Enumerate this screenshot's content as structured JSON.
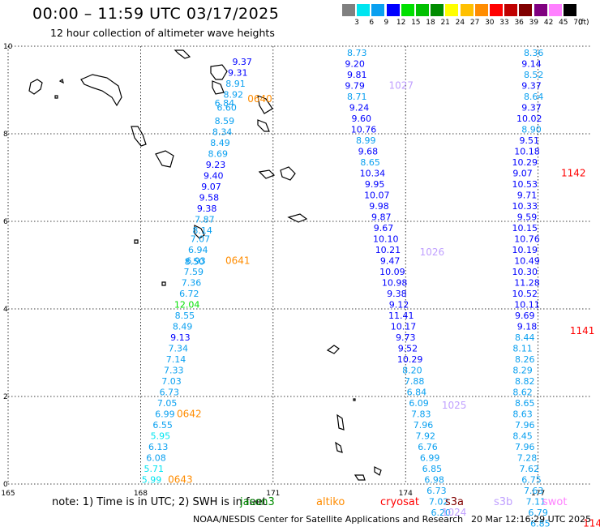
{
  "header": {
    "title": "00:00 – 11:59 UTC 03/17/2025",
    "subtitle": "12 hour collection of altimeter wave heights"
  },
  "legend": {
    "unit": "(ft)",
    "bins": [
      {
        "label": "3",
        "color": "#808080"
      },
      {
        "label": "6",
        "color": "#00e5f0"
      },
      {
        "label": "9",
        "color": "#0aa0f0"
      },
      {
        "label": "12",
        "color": "#0000ff"
      },
      {
        "label": "15",
        "color": "#00e000"
      },
      {
        "label": "18",
        "color": "#00c000"
      },
      {
        "label": "21",
        "color": "#008c00"
      },
      {
        "label": "24",
        "color": "#ffff00"
      },
      {
        "label": "27",
        "color": "#ffc000"
      },
      {
        "label": "30",
        "color": "#ff8c00"
      },
      {
        "label": "33",
        "color": "#ff0000"
      },
      {
        "label": "36",
        "color": "#c00000"
      },
      {
        "label": "39",
        "color": "#800000"
      },
      {
        "label": "42",
        "color": "#800080"
      },
      {
        "label": "45",
        "color": "#ff80ff"
      },
      {
        "label": "70",
        "color": "#000000"
      }
    ]
  },
  "axes": {
    "x_ticks": [
      "165",
      "168",
      "171",
      "174",
      "177"
    ],
    "y_ticks": [
      "0",
      "2",
      "4",
      "6",
      "8",
      "10"
    ]
  },
  "tracks": [
    {
      "pass_label": "0642",
      "pass_color": "#ff8c00",
      "points": [
        {
          "v": "9.37",
          "lon": 170.3,
          "lat": 9.65
        },
        {
          "v": "9.31",
          "lon": 170.2,
          "lat": 9.4
        },
        {
          "v": "8.91",
          "lon": 170.15,
          "lat": 9.15
        },
        {
          "v": "8.92",
          "lon": 170.1,
          "lat": 8.9
        },
        {
          "v": "6.84",
          "lon": 169.9,
          "lat": 8.7
        },
        {
          "v": "6.60",
          "lon": 169.95,
          "lat": 8.6
        },
        {
          "v": "8.59",
          "lon": 169.9,
          "lat": 8.3
        },
        {
          "v": "8.34",
          "lon": 169.85,
          "lat": 8.05
        },
        {
          "v": "8.49",
          "lon": 169.8,
          "lat": 7.8
        },
        {
          "v": "8.69",
          "lon": 169.75,
          "lat": 7.55
        },
        {
          "v": "9.23",
          "lon": 169.7,
          "lat": 7.3
        },
        {
          "v": "9.40",
          "lon": 169.65,
          "lat": 7.05
        },
        {
          "v": "9.07",
          "lon": 169.6,
          "lat": 6.8
        },
        {
          "v": "9.58",
          "lon": 169.55,
          "lat": 6.55
        },
        {
          "v": "9.38",
          "lon": 169.5,
          "lat": 6.3
        },
        {
          "v": "7.87",
          "lon": 169.45,
          "lat": 6.05
        },
        {
          "v": "8.14",
          "lon": 169.4,
          "lat": 5.8
        },
        {
          "v": "7.07",
          "lon": 169.35,
          "lat": 5.6
        },
        {
          "v": "6.94",
          "lon": 169.3,
          "lat": 5.35
        },
        {
          "v": "6.93",
          "lon": 169.25,
          "lat": 5.1
        },
        {
          "v": "8.50",
          "lon": 169.22,
          "lat": 5.08
        },
        {
          "v": "7.59",
          "lon": 169.2,
          "lat": 4.85
        },
        {
          "v": "7.36",
          "lon": 169.15,
          "lat": 4.6
        },
        {
          "v": "6.72",
          "lon": 169.1,
          "lat": 4.35
        },
        {
          "v": "12.04",
          "lon": 169.05,
          "lat": 4.1
        },
        {
          "v": "8.55",
          "lon": 169.0,
          "lat": 3.85
        },
        {
          "v": "8.49",
          "lon": 168.95,
          "lat": 3.6
        },
        {
          "v": "9.13",
          "lon": 168.9,
          "lat": 3.35
        },
        {
          "v": "7.34",
          "lon": 168.85,
          "lat": 3.1
        },
        {
          "v": "7.14",
          "lon": 168.8,
          "lat": 2.85
        },
        {
          "v": "7.33",
          "lon": 168.75,
          "lat": 2.6
        },
        {
          "v": "7.03",
          "lon": 168.7,
          "lat": 2.35
        },
        {
          "v": "6.73",
          "lon": 168.65,
          "lat": 2.1
        },
        {
          "v": "7.05",
          "lon": 168.6,
          "lat": 1.85
        },
        {
          "v": "6.99",
          "lon": 168.55,
          "lat": 1.6
        },
        {
          "v": "6.55",
          "lon": 168.5,
          "lat": 1.35
        },
        {
          "v": "5.95",
          "lon": 168.45,
          "lat": 1.1
        },
        {
          "v": "6.13",
          "lon": 168.4,
          "lat": 0.85
        },
        {
          "v": "6.08",
          "lon": 168.35,
          "lat": 0.6
        },
        {
          "v": "5.71",
          "lon": 168.3,
          "lat": 0.35
        },
        {
          "v": "5.99",
          "lon": 168.25,
          "lat": 0.1
        }
      ]
    },
    {
      "pass_label": "1026",
      "pass_color": "#c0a0ff",
      "points": [
        {
          "v": "8.73",
          "lon": 172.9,
          "lat": 9.85
        },
        {
          "v": "9.20",
          "lon": 172.85,
          "lat": 9.6
        },
        {
          "v": "9.81",
          "lon": 172.9,
          "lat": 9.35
        },
        {
          "v": "9.79",
          "lon": 172.85,
          "lat": 9.1
        },
        {
          "v": "8.71",
          "lon": 172.9,
          "lat": 8.85
        },
        {
          "v": "9.24",
          "lon": 172.95,
          "lat": 8.6
        },
        {
          "v": "9.60",
          "lon": 173.0,
          "lat": 8.35
        },
        {
          "v": "10.76",
          "lon": 173.05,
          "lat": 8.1
        },
        {
          "v": "8.99",
          "lon": 173.1,
          "lat": 7.85
        },
        {
          "v": "9.68",
          "lon": 173.15,
          "lat": 7.6
        },
        {
          "v": "8.65",
          "lon": 173.2,
          "lat": 7.35
        },
        {
          "v": "10.34",
          "lon": 173.25,
          "lat": 7.1
        },
        {
          "v": "9.95",
          "lon": 173.3,
          "lat": 6.85
        },
        {
          "v": "10.07",
          "lon": 173.35,
          "lat": 6.6
        },
        {
          "v": "9.98",
          "lon": 173.4,
          "lat": 6.35
        },
        {
          "v": "9.87",
          "lon": 173.45,
          "lat": 6.1
        },
        {
          "v": "9.67",
          "lon": 173.5,
          "lat": 5.85
        },
        {
          "v": "10.10",
          "lon": 173.55,
          "lat": 5.6
        },
        {
          "v": "10.21",
          "lon": 173.6,
          "lat": 5.35
        },
        {
          "v": "9.47",
          "lon": 173.65,
          "lat": 5.1
        },
        {
          "v": "10.09",
          "lon": 173.7,
          "lat": 4.85
        },
        {
          "v": "10.98",
          "lon": 173.75,
          "lat": 4.6
        },
        {
          "v": "9.38",
          "lon": 173.8,
          "lat": 4.35
        },
        {
          "v": "9.12",
          "lon": 173.85,
          "lat": 4.1
        },
        {
          "v": "11.41",
          "lon": 173.9,
          "lat": 3.85
        },
        {
          "v": "10.17",
          "lon": 173.95,
          "lat": 3.6
        },
        {
          "v": "9.73",
          "lon": 174.0,
          "lat": 3.35
        },
        {
          "v": "9.52",
          "lon": 174.05,
          "lat": 3.1
        },
        {
          "v": "10.29",
          "lon": 174.1,
          "lat": 2.85
        },
        {
          "v": "8.20",
          "lon": 174.15,
          "lat": 2.6
        },
        {
          "v": "7.88",
          "lon": 174.2,
          "lat": 2.35
        },
        {
          "v": "6.84",
          "lon": 174.25,
          "lat": 2.1
        },
        {
          "v": "6.09",
          "lon": 174.3,
          "lat": 1.85
        },
        {
          "v": "7.83",
          "lon": 174.35,
          "lat": 1.6
        },
        {
          "v": "7.96",
          "lon": 174.4,
          "lat": 1.35
        },
        {
          "v": "7.92",
          "lon": 174.45,
          "lat": 1.1
        },
        {
          "v": "6.76",
          "lon": 174.5,
          "lat": 0.85
        },
        {
          "v": "6.99",
          "lon": 174.55,
          "lat": 0.6
        },
        {
          "v": "6.85",
          "lon": 174.6,
          "lat": 0.35
        },
        {
          "v": "6.98",
          "lon": 174.65,
          "lat": 0.1
        },
        {
          "v": "6.73",
          "lon": 174.7,
          "lat": -0.15
        },
        {
          "v": "7.02",
          "lon": 174.75,
          "lat": -0.4
        },
        {
          "v": "6.20",
          "lon": 174.8,
          "lat": -0.65
        }
      ]
    },
    {
      "pass_label": "1141",
      "pass_color": "#ff0000",
      "points": [
        {
          "v": "8.36",
          "lon": 176.9,
          "lat": 9.85
        },
        {
          "v": "9.14",
          "lon": 176.85,
          "lat": 9.6
        },
        {
          "v": "8.52",
          "lon": 176.9,
          "lat": 9.35
        },
        {
          "v": "9.37",
          "lon": 176.85,
          "lat": 9.1
        },
        {
          "v": "8.64",
          "lon": 176.9,
          "lat": 8.85
        },
        {
          "v": "9.37",
          "lon": 176.85,
          "lat": 8.6
        },
        {
          "v": "10.02",
          "lon": 176.8,
          "lat": 8.35
        },
        {
          "v": "8.90",
          "lon": 176.85,
          "lat": 8.1
        },
        {
          "v": "9.51",
          "lon": 176.8,
          "lat": 7.85
        },
        {
          "v": "10.18",
          "lon": 176.75,
          "lat": 7.6
        },
        {
          "v": "10.29",
          "lon": 176.7,
          "lat": 7.35
        },
        {
          "v": "9.07",
          "lon": 176.65,
          "lat": 7.1
        },
        {
          "v": "10.53",
          "lon": 176.7,
          "lat": 6.85
        },
        {
          "v": "9.71",
          "lon": 176.75,
          "lat": 6.6
        },
        {
          "v": "10.33",
          "lon": 176.7,
          "lat": 6.35
        },
        {
          "v": "9.59",
          "lon": 176.75,
          "lat": 6.1
        },
        {
          "v": "10.15",
          "lon": 176.7,
          "lat": 5.85
        },
        {
          "v": "10.76",
          "lon": 176.75,
          "lat": 5.6
        },
        {
          "v": "10.19",
          "lon": 176.7,
          "lat": 5.35
        },
        {
          "v": "10.49",
          "lon": 176.75,
          "lat": 5.1
        },
        {
          "v": "10.30",
          "lon": 176.7,
          "lat": 4.85
        },
        {
          "v": "11.28",
          "lon": 176.75,
          "lat": 4.6
        },
        {
          "v": "10.52",
          "lon": 176.7,
          "lat": 4.35
        },
        {
          "v": "10.11",
          "lon": 176.75,
          "lat": 4.1
        },
        {
          "v": "9.69",
          "lon": 176.7,
          "lat": 3.85
        },
        {
          "v": "9.18",
          "lon": 176.75,
          "lat": 3.6
        },
        {
          "v": "8.44",
          "lon": 176.7,
          "lat": 3.35
        },
        {
          "v": "8.11",
          "lon": 176.65,
          "lat": 3.1
        },
        {
          "v": "8.26",
          "lon": 176.7,
          "lat": 2.85
        },
        {
          "v": "8.29",
          "lon": 176.65,
          "lat": 2.6
        },
        {
          "v": "8.82",
          "lon": 176.7,
          "lat": 2.35
        },
        {
          "v": "8.62",
          "lon": 176.65,
          "lat": 2.1
        },
        {
          "v": "8.65",
          "lon": 176.7,
          "lat": 1.85
        },
        {
          "v": "8.63",
          "lon": 176.65,
          "lat": 1.6
        },
        {
          "v": "7.96",
          "lon": 176.7,
          "lat": 1.35
        },
        {
          "v": "8.45",
          "lon": 176.65,
          "lat": 1.1
        },
        {
          "v": "7.96",
          "lon": 176.7,
          "lat": 0.85
        },
        {
          "v": "7.28",
          "lon": 176.75,
          "lat": 0.6
        },
        {
          "v": "7.62",
          "lon": 176.8,
          "lat": 0.35
        },
        {
          "v": "6.75",
          "lon": 176.85,
          "lat": 0.1
        },
        {
          "v": "7.63",
          "lon": 176.9,
          "lat": -0.15
        },
        {
          "v": "7.11",
          "lon": 176.95,
          "lat": -0.4
        },
        {
          "v": "6.79",
          "lon": 177.0,
          "lat": -0.65
        },
        {
          "v": "6.85",
          "lon": 177.05,
          "lat": -0.9
        }
      ]
    }
  ],
  "pass_labels": [
    {
      "text": "0640",
      "color": "#ff8c00",
      "lon": 170.7,
      "lat": 8.8
    },
    {
      "text": "0641",
      "color": "#ff8c00",
      "lon": 170.2,
      "lat": 5.1
    },
    {
      "text": "0642",
      "color": "#ff8c00",
      "lon": 169.1,
      "lat": 1.6
    },
    {
      "text": "0643",
      "color": "#ff8c00",
      "lon": 168.9,
      "lat": 0.1
    },
    {
      "text": "1027",
      "color": "#c0a0ff",
      "lon": 173.9,
      "lat": 9.1
    },
    {
      "text": "1026",
      "color": "#c0a0ff",
      "lon": 174.6,
      "lat": 5.3
    },
    {
      "text": "1025",
      "color": "#c0a0ff",
      "lon": 175.1,
      "lat": 1.8
    },
    {
      "text": "1024",
      "color": "#c0a0ff",
      "lon": 175.1,
      "lat": -0.65
    },
    {
      "text": "1142",
      "color": "#ff0000",
      "lon": 177.8,
      "lat": 7.1
    },
    {
      "text": "1141",
      "color": "#ff0000",
      "lon": 178.0,
      "lat": 3.5
    },
    {
      "text": "1140",
      "color": "#ff0000",
      "lon": 178.3,
      "lat": -0.9
    }
  ],
  "note": {
    "text": "note:  1) Time is in UTC; 2) SWH is in feet",
    "satellites": [
      {
        "name": "jason3",
        "color": "#008c00"
      },
      {
        "name": "altiko",
        "color": "#ff8c00"
      },
      {
        "name": "cryosat",
        "color": "#ff0000"
      },
      {
        "name": "s3a",
        "color": "#800000"
      },
      {
        "name": "s3b",
        "color": "#c0a0ff"
      },
      {
        "name": "swot",
        "color": "#ff80ff"
      }
    ]
  },
  "footer": {
    "credit": "NOAA/NESDIS Center for Satellite Applications and Research",
    "generated": "20 Mar 12:16:29 UTC 2025"
  }
}
